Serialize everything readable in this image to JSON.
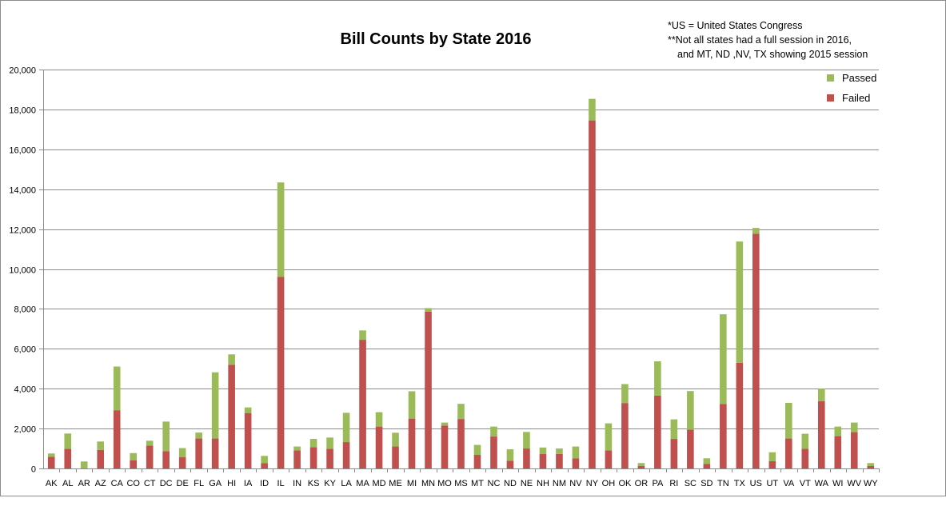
{
  "chart_data": {
    "type": "bar",
    "stacked": true,
    "title": "Bill Counts by State 2016",
    "notes": [
      "*US = United States Congress",
      "**Not all states had a full session in 2016,",
      "and MT,  ND ,NV, TX showing 2015 session"
    ],
    "xlabel": "",
    "ylabel": "",
    "ylim": [
      0,
      20000
    ],
    "yticks": [
      0,
      2000,
      4000,
      6000,
      8000,
      10000,
      12000,
      14000,
      16000,
      18000,
      20000
    ],
    "ytick_labels": [
      "0",
      "2,000",
      "4,000",
      "6,000",
      "8,000",
      "10,000",
      "12,000",
      "14,000",
      "16,000",
      "18,000",
      "20,000"
    ],
    "grid": true,
    "legend_position": "top-right",
    "categories": [
      "AK",
      "AL",
      "AR",
      "AZ",
      "CA",
      "CO",
      "CT",
      "DC",
      "DE",
      "FL",
      "GA",
      "HI",
      "IA",
      "ID",
      "IL",
      "IN",
      "KS",
      "KY",
      "LA",
      "MA",
      "MD",
      "ME",
      "MI",
      "MN",
      "MO",
      "MS",
      "MT",
      "NC",
      "ND",
      "NE",
      "NH",
      "NM",
      "NV",
      "NY",
      "OH",
      "OK",
      "OR",
      "PA",
      "RI",
      "SC",
      "SD",
      "TN",
      "TX",
      "US",
      "UT",
      "VA",
      "VT",
      "WA",
      "WI",
      "WV",
      "WY"
    ],
    "series": [
      {
        "name": "Failed",
        "color": "#c0504d",
        "values": [
          580,
          980,
          0,
          930,
          2920,
          400,
          1150,
          870,
          560,
          1500,
          1500,
          5200,
          2780,
          270,
          9600,
          900,
          1060,
          980,
          1320,
          6450,
          2100,
          1100,
          2500,
          7860,
          2150,
          2480,
          680,
          1600,
          390,
          1000,
          720,
          730,
          510,
          17450,
          900,
          3280,
          130,
          3650,
          1480,
          1950,
          220,
          3230,
          5300,
          11770,
          360,
          1500,
          980,
          3370,
          1620,
          1820,
          120
        ]
      },
      {
        "name": "Passed",
        "color": "#9bbb59",
        "values": [
          170,
          770,
          350,
          420,
          2190,
          370,
          240,
          1480,
          460,
          300,
          3320,
          520,
          280,
          360,
          4740,
          200,
          420,
          570,
          1470,
          470,
          720,
          690,
          1370,
          180,
          150,
          760,
          500,
          500,
          570,
          830,
          330,
          270,
          590,
          1080,
          1360,
          950,
          140,
          1720,
          980,
          1930,
          290,
          4500,
          6080,
          290,
          450,
          1790,
          760,
          630,
          480,
          480,
          150
        ]
      }
    ],
    "legend": [
      "Passed",
      "Failed"
    ]
  }
}
